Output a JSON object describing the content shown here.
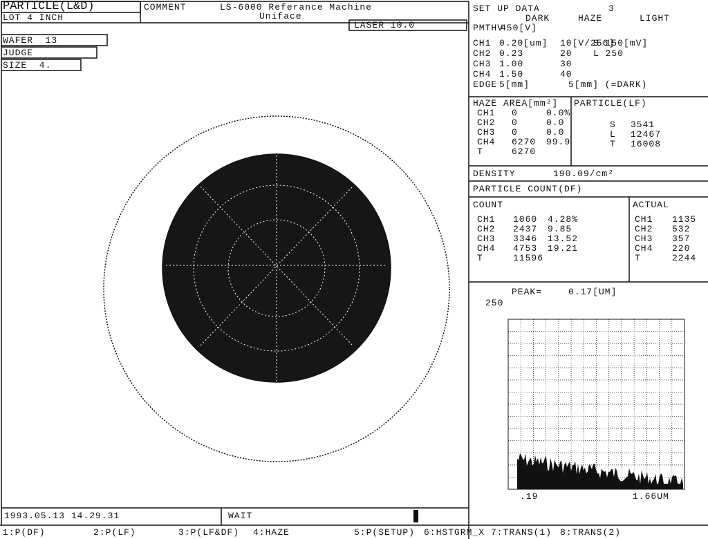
{
  "header": {
    "title": "PARTICLE(L&D)",
    "lot": "LOT 4 INCH",
    "wafer": "WAFER  13",
    "judge": "JUDGE",
    "size": "SIZE  4.",
    "comment_label": "COMMENT",
    "comment": "LS-6000 Referance Machine",
    "comment_sub": "Uniface",
    "laser": "LASER 10.0"
  },
  "setup": {
    "title": "SET UP DATA",
    "number": "3",
    "columns": [
      "DARK",
      "HAZE",
      "LIGHT"
    ],
    "pmthv_label": "PMTHV",
    "pmthv": "450[V]",
    "rows": [
      [
        "CH1",
        "0.20[um]",
        "10[V/256]",
        "S 150[mV]"
      ],
      [
        "CH2",
        "0.23",
        "20",
        "L 250"
      ],
      [
        "CH3",
        "1.00",
        "30"
      ],
      [
        "CH4",
        "1.50",
        "40"
      ],
      [
        "EDGE",
        "5[mm]",
        "5[mm] (=DARK)"
      ]
    ]
  },
  "haze": {
    "title": "HAZE AREA[mm²]",
    "rows": [
      [
        "CH1",
        "0",
        "0.0%"
      ],
      [
        "CH2",
        "0",
        "0.0"
      ],
      [
        "CH3",
        "0",
        "0.0"
      ],
      [
        "CH4",
        "6270",
        "99.9"
      ],
      [
        "T",
        "6270"
      ]
    ]
  },
  "particle_lf": {
    "title": "PARTICLE(LF)",
    "rows": [
      [
        "S",
        "3541"
      ],
      [
        "L",
        "12467"
      ],
      [
        "T",
        "16008"
      ]
    ]
  },
  "density": {
    "label": "DENSITY",
    "value": "190.09/cm²"
  },
  "count": {
    "title": "PARTICLE COUNT(DF)",
    "count_label": "COUNT",
    "rows": [
      [
        "CH1",
        "1060",
        "4.28%"
      ],
      [
        "CH2",
        "2437",
        "9.85"
      ],
      [
        "CH3",
        "3346",
        "13.52"
      ],
      [
        "CH4",
        "4753",
        "19.21"
      ],
      [
        "T",
        "11596"
      ]
    ],
    "actual_label": "ACTUAL",
    "actual_rows": [
      [
        "CH1",
        "1135"
      ],
      [
        "CH2",
        "532"
      ],
      [
        "CH3",
        "357"
      ],
      [
        "CH4",
        "220"
      ],
      [
        "T",
        "2244"
      ]
    ]
  },
  "histogram": {
    "peak_label": "PEAK=",
    "peak": "0.17[UM]",
    "y_max": "250",
    "x_min": ".19",
    "x_max": "1.66UM"
  },
  "status": {
    "datetime": "1993.05.13 14.29.31",
    "state": "WAIT"
  },
  "function_keys": [
    "1:P(DF)",
    "2:P(LF)",
    "3:P(LF&DF)",
    "4:HAZE",
    "5:P(SETUP)",
    "6:HSTGRM_X",
    "7:TRANS(1)",
    "8:TRANS(2)"
  ]
}
